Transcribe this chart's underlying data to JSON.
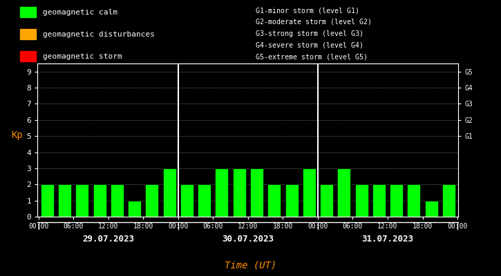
{
  "bg_color": "#000000",
  "bar_color": "#00ff00",
  "bar_edge_color": "#000000",
  "grid_color": "#ffffff",
  "tick_color": "#ffffff",
  "label_color": "#ffffff",
  "kp_label_color": "#ff8c00",
  "time_label_color": "#ff8c00",
  "days": [
    "29.07.2023",
    "30.07.2023",
    "31.07.2023"
  ],
  "kp_values": [
    [
      2,
      2,
      2,
      2,
      2,
      1,
      2,
      3
    ],
    [
      2,
      2,
      3,
      3,
      3,
      2,
      2,
      3
    ],
    [
      2,
      3,
      2,
      2,
      2,
      2,
      1,
      2
    ]
  ],
  "ylim": [
    0,
    9.5
  ],
  "yticks": [
    0,
    1,
    2,
    3,
    4,
    5,
    6,
    7,
    8,
    9
  ],
  "legend_items": [
    {
      "label": "geomagnetic calm",
      "color": "#00ff00"
    },
    {
      "label": "geomagnetic disturbances",
      "color": "#ffa500"
    },
    {
      "label": "geomagnetic storm",
      "color": "#ff0000"
    }
  ],
  "right_legend": [
    "G1-minor storm (level G1)",
    "G2-moderate storm (level G2)",
    "G3-strong storm (level G3)",
    "G4-severe storm (level G4)",
    "G5-extreme storm (level G5)"
  ],
  "xlabel": "Time (UT)",
  "ylabel": "Kp",
  "bar_width": 0.75
}
